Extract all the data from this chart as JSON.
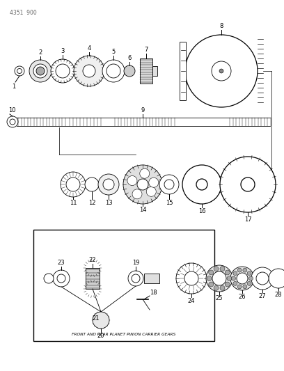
{
  "title": "4351  900",
  "bg": "#ffffff",
  "lc": "#000000",
  "fig_w": 4.08,
  "fig_h": 5.33,
  "dpi": 100
}
